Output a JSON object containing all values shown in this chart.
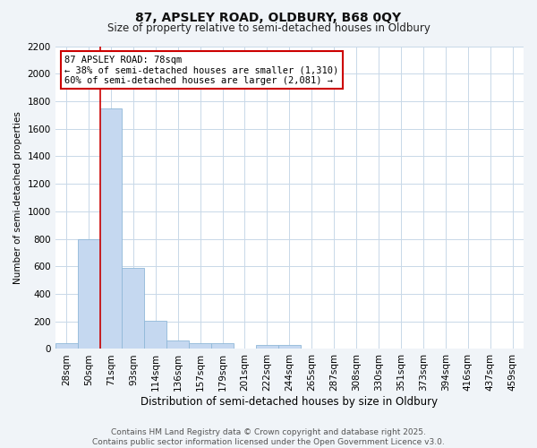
{
  "title1": "87, APSLEY ROAD, OLDBURY, B68 0QY",
  "title2": "Size of property relative to semi-detached houses in Oldbury",
  "xlabel": "Distribution of semi-detached houses by size in Oldbury",
  "ylabel": "Number of semi-detached properties",
  "categories": [
    "28sqm",
    "50sqm",
    "71sqm",
    "93sqm",
    "114sqm",
    "136sqm",
    "157sqm",
    "179sqm",
    "201sqm",
    "222sqm",
    "244sqm",
    "265sqm",
    "287sqm",
    "308sqm",
    "330sqm",
    "351sqm",
    "373sqm",
    "394sqm",
    "416sqm",
    "437sqm",
    "459sqm"
  ],
  "values": [
    45,
    795,
    1745,
    590,
    205,
    63,
    42,
    42,
    0,
    30,
    30,
    0,
    0,
    0,
    0,
    0,
    0,
    0,
    0,
    0,
    0
  ],
  "bar_color": "#c5d8f0",
  "bar_edge_color": "#90b8d8",
  "highlight_line_color": "#cc0000",
  "annotation_text": "87 APSLEY ROAD: 78sqm\n← 38% of semi-detached houses are smaller (1,310)\n60% of semi-detached houses are larger (2,081) →",
  "annotation_box_color": "#ffffff",
  "annotation_box_edge_color": "#cc0000",
  "ylim": [
    0,
    2200
  ],
  "yticks": [
    0,
    200,
    400,
    600,
    800,
    1000,
    1200,
    1400,
    1600,
    1800,
    2000,
    2200
  ],
  "background_color": "#f0f4f8",
  "plot_bg_color": "#ffffff",
  "footer_text": "Contains HM Land Registry data © Crown copyright and database right 2025.\nContains public sector information licensed under the Open Government Licence v3.0.",
  "title1_fontsize": 10,
  "title2_fontsize": 8.5,
  "xlabel_fontsize": 8.5,
  "ylabel_fontsize": 7.5,
  "tick_fontsize": 7.5,
  "footer_fontsize": 6.5,
  "annot_fontsize": 7.5
}
